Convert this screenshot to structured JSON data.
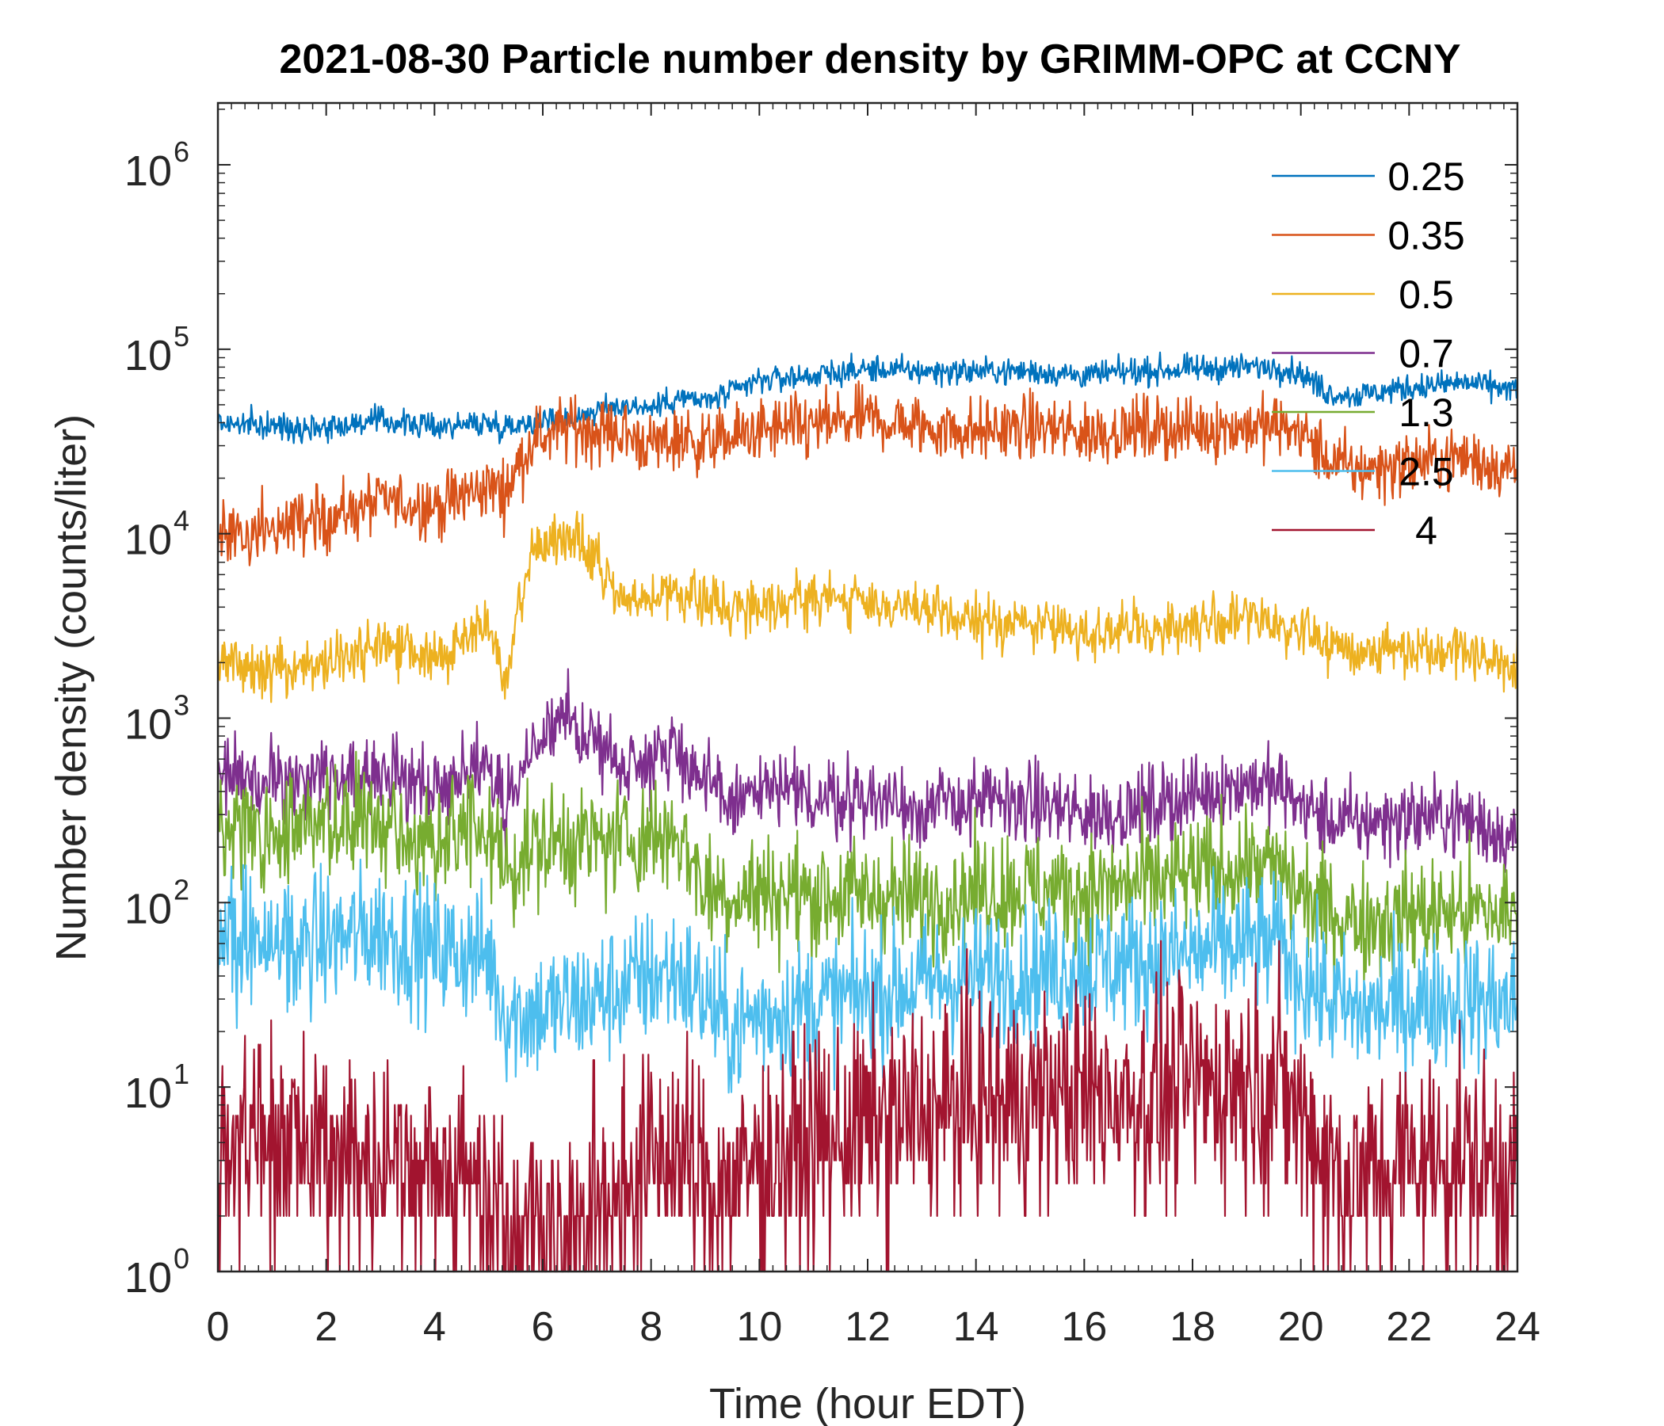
{
  "chart_data": {
    "type": "line",
    "title": "2021-08-30 Particle number density by GRIMM-OPC at CCNY",
    "xlabel": "Time (hour EDT)",
    "ylabel": "Number density (counts/liter)",
    "xlim": [
      0,
      24
    ],
    "ylim": [
      1,
      2000000
    ],
    "yscale": "log",
    "xticks": [
      0,
      2,
      4,
      6,
      8,
      10,
      12,
      14,
      16,
      18,
      20,
      22,
      24
    ],
    "xtick_labels": [
      "0",
      "2",
      "4",
      "6",
      "8",
      "10",
      "12",
      "14",
      "16",
      "18",
      "20",
      "22",
      "24"
    ],
    "yticks": [
      1,
      10,
      100,
      1000,
      10000,
      100000,
      1000000
    ],
    "ytick_labels": [
      {
        "base": "10",
        "exp": "0"
      },
      {
        "base": "10",
        "exp": "1"
      },
      {
        "base": "10",
        "exp": "2"
      },
      {
        "base": "10",
        "exp": "3"
      },
      {
        "base": "10",
        "exp": "4"
      },
      {
        "base": "10",
        "exp": "5"
      },
      {
        "base": "10",
        "exp": "6"
      }
    ],
    "legend_position": "top-right",
    "grid": false,
    "x": [
      0,
      1,
      2,
      3,
      4,
      5,
      5.3,
      5.8,
      6.5,
      7,
      7.5,
      8,
      8.5,
      9,
      9.5,
      10,
      11,
      12,
      13,
      14,
      15,
      16,
      17,
      18,
      19,
      19.6,
      20,
      20.5,
      21,
      22,
      23,
      24
    ],
    "series": [
      {
        "name": "0.25",
        "color": "#0072BD",
        "noise": 0.05,
        "values": [
          40000,
          38000,
          38000,
          41000,
          38000,
          40000,
          38000,
          41000,
          42000,
          46000,
          50000,
          48000,
          55000,
          52000,
          58000,
          68000,
          72000,
          78000,
          76000,
          76000,
          76000,
          72000,
          76000,
          78000,
          80000,
          80000,
          74000,
          58000,
          56000,
          62000,
          66000,
          60000
        ]
      },
      {
        "name": "0.35",
        "color": "#D95319",
        "noise": 0.12,
        "values": [
          9500,
          11000,
          12000,
          15000,
          14000,
          18000,
          17000,
          32000,
          38000,
          36000,
          35000,
          30000,
          33000,
          31000,
          33000,
          36000,
          38000,
          42000,
          38000,
          36000,
          38000,
          35000,
          37000,
          37000,
          38000,
          38000,
          36000,
          25000,
          22000,
          24000,
          26000,
          22000
        ]
      },
      {
        "name": "0.5",
        "color": "#EDB120",
        "noise": 0.1,
        "values": [
          2000,
          1800,
          2000,
          2500,
          2100,
          3300,
          1500,
          8000,
          10000,
          7000,
          4000,
          4500,
          5000,
          4200,
          4000,
          4200,
          4500,
          4300,
          3800,
          3300,
          3300,
          2900,
          3000,
          3200,
          3500,
          3300,
          3000,
          2500,
          2300,
          2400,
          2400,
          1800
        ]
      },
      {
        "name": "0.7",
        "color": "#7E2F8E",
        "noise": 0.15,
        "values": [
          550,
          450,
          480,
          550,
          400,
          600,
          300,
          700,
          950,
          750,
          550,
          650,
          700,
          420,
          350,
          400,
          370,
          370,
          330,
          350,
          350,
          300,
          320,
          380,
          450,
          420,
          340,
          280,
          270,
          290,
          290,
          220
        ]
      },
      {
        "name": "1.3",
        "color": "#77AC30",
        "noise": 0.22,
        "values": [
          250,
          240,
          260,
          280,
          220,
          260,
          150,
          200,
          220,
          210,
          220,
          230,
          240,
          120,
          110,
          115,
          110,
          110,
          105,
          115,
          120,
          115,
          125,
          140,
          160,
          150,
          110,
          90,
          80,
          85,
          90,
          85
        ]
      },
      {
        "name": "2.5",
        "color": "#4DBEEE",
        "noise": 0.26,
        "values": [
          60,
          58,
          62,
          70,
          55,
          52,
          25,
          25,
          28,
          30,
          35,
          40,
          42,
          30,
          20,
          25,
          28,
          32,
          36,
          40,
          42,
          45,
          48,
          52,
          60,
          58,
          40,
          30,
          25,
          28,
          30,
          28
        ]
      },
      {
        "name": "4",
        "color": "#A2142F",
        "noise": 0.42,
        "values": [
          5,
          5,
          4.5,
          4.5,
          3.5,
          3,
          2.2,
          1.8,
          1.6,
          2.2,
          3,
          4,
          4.5,
          3,
          3,
          4,
          5,
          6,
          7,
          8,
          8.5,
          9,
          9,
          10,
          11,
          10,
          7,
          4,
          3,
          4,
          4,
          3.5
        ]
      }
    ]
  }
}
